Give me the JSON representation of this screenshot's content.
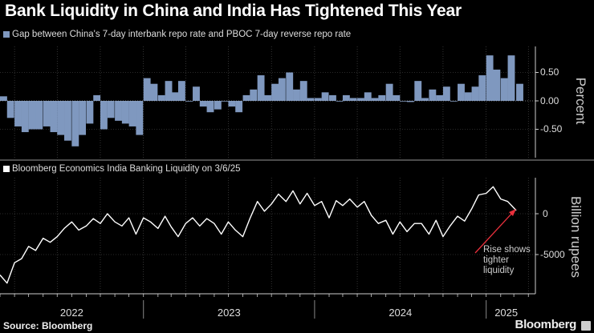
{
  "header": {
    "title": "Bank Liquidity in China and India Has Tightened This Year"
  },
  "footer": {
    "source": "Source: Bloomberg",
    "brand": "Bloomberg"
  },
  "colors": {
    "china_bars": "#7f98bf",
    "india_line": "#ffffff",
    "annotation_arrow": "#e8303c",
    "background": "#000000"
  },
  "chart_data": [
    {
      "type": "bar",
      "legend": "Gap between China's 7-day interbank repo rate and PBOC 7-day reverse repo rate",
      "ylabel": "Percent",
      "yticks": [
        "0.50",
        "0.00",
        "-0.50"
      ],
      "ytick_values": [
        0.5,
        0.0,
        -0.5
      ],
      "ylim": [
        -1.0,
        0.95
      ],
      "xlim": [
        "2022-03-01",
        "2025-04-16"
      ],
      "grid": true,
      "legend_placement": "top-left",
      "series": [
        {
          "name": "Gap between China's 7-day interbank repo rate and PBOC 7-day reverse repo rate",
          "values": [
            0.08,
            -0.3,
            -0.45,
            -0.55,
            -0.5,
            -0.5,
            -0.45,
            -0.55,
            -0.6,
            -0.7,
            -0.8,
            -0.6,
            -0.4,
            0.1,
            -0.5,
            -0.3,
            -0.35,
            -0.4,
            -0.45,
            -0.6,
            0.4,
            0.3,
            0.1,
            0.35,
            0.15,
            0.35,
            0.0,
            0.25,
            -0.1,
            -0.2,
            -0.15,
            0.0,
            -0.1,
            -0.2,
            0.1,
            0.2,
            0.45,
            0.1,
            0.3,
            0.4,
            0.5,
            0.2,
            0.35,
            0.05,
            0.05,
            0.15,
            0.1,
            0.0,
            0.1,
            0.05,
            0.05,
            0.15,
            0.05,
            0.1,
            0.3,
            0.1,
            0.0,
            -0.02,
            0.35,
            0.05,
            0.2,
            0.1,
            0.25,
            0.0,
            0.3,
            0.15,
            0.25,
            0.45,
            0.8,
            0.55,
            0.4,
            0.8,
            0.3
          ]
        }
      ]
    },
    {
      "type": "line",
      "legend": "Bloomberg Economics India Banking Liquidity on 3/6/25",
      "ylabel": "Billion rupees",
      "yticks": [
        "0",
        "-5000"
      ],
      "ytick_values": [
        0,
        -5000
      ],
      "ylim": [
        -9800,
        4400
      ],
      "xlim": [
        "2022-03-01",
        "2025-04-16"
      ],
      "xticks": [
        "2022",
        "2023",
        "2024",
        "2025"
      ],
      "grid": true,
      "legend_placement": "top-left",
      "annotation": {
        "text": [
          "Rise shows",
          "tighter",
          "liquidity"
        ]
      },
      "series": [
        {
          "name": "Bloomberg Economics India Banking Liquidity on 3/6/25",
          "values": [
            -7500,
            -8500,
            -6000,
            -5500,
            -4000,
            -4500,
            -3000,
            -3500,
            -2800,
            -1800,
            -1000,
            -2000,
            -1500,
            -600,
            -1200,
            0,
            -1000,
            -1500,
            -500,
            -2500,
            -500,
            -1000,
            -1800,
            -300,
            -1600,
            -2800,
            -1200,
            -500,
            -1500,
            -600,
            -1200,
            -2500,
            -1000,
            -2000,
            -2800,
            -600,
            1500,
            300,
            1200,
            2400,
            1500,
            2800,
            1200,
            2500,
            1000,
            1500,
            -500,
            1600,
            1000,
            1800,
            800,
            1500,
            -200,
            -1200,
            -800,
            -2500,
            -1000,
            -2200,
            -1200,
            -1200,
            -2500,
            -800,
            -2800,
            -1500,
            -300,
            -900,
            600,
            2300,
            2500,
            3300,
            1800,
            1500,
            400
          ]
        }
      ]
    }
  ],
  "dates": [
    "2022-03-01",
    "2022-03-16",
    "2022-04-01",
    "2022-04-16",
    "2022-05-01",
    "2022-05-16",
    "2022-06-01",
    "2022-06-16",
    "2022-07-01",
    "2022-07-16",
    "2022-08-01",
    "2022-08-16",
    "2022-09-01",
    "2022-09-16",
    "2022-10-01",
    "2022-10-16",
    "2022-11-01",
    "2022-11-16",
    "2022-12-01",
    "2022-12-16",
    "2023-01-01",
    "2023-01-16",
    "2023-02-01",
    "2023-02-16",
    "2023-03-01",
    "2023-03-16",
    "2023-04-01",
    "2023-04-16",
    "2023-05-01",
    "2023-05-16",
    "2023-06-01",
    "2023-06-16",
    "2023-07-01",
    "2023-07-16",
    "2023-08-01",
    "2023-08-16",
    "2023-09-01",
    "2023-09-16",
    "2023-10-01",
    "2023-10-16",
    "2023-11-01",
    "2023-11-16",
    "2023-12-01",
    "2023-12-16",
    "2024-01-01",
    "2024-01-16",
    "2024-02-01",
    "2024-02-16",
    "2024-03-01",
    "2024-03-16",
    "2024-04-01",
    "2024-04-16",
    "2024-05-01",
    "2024-05-16",
    "2024-06-01",
    "2024-06-16",
    "2024-07-01",
    "2024-07-16",
    "2024-08-01",
    "2024-08-16",
    "2024-09-01",
    "2024-09-16",
    "2024-10-01",
    "2024-10-16",
    "2024-11-01",
    "2024-11-16",
    "2024-12-01",
    "2024-12-16",
    "2025-01-01",
    "2025-01-16",
    "2025-02-01",
    "2025-02-16",
    "2025-03-06"
  ]
}
